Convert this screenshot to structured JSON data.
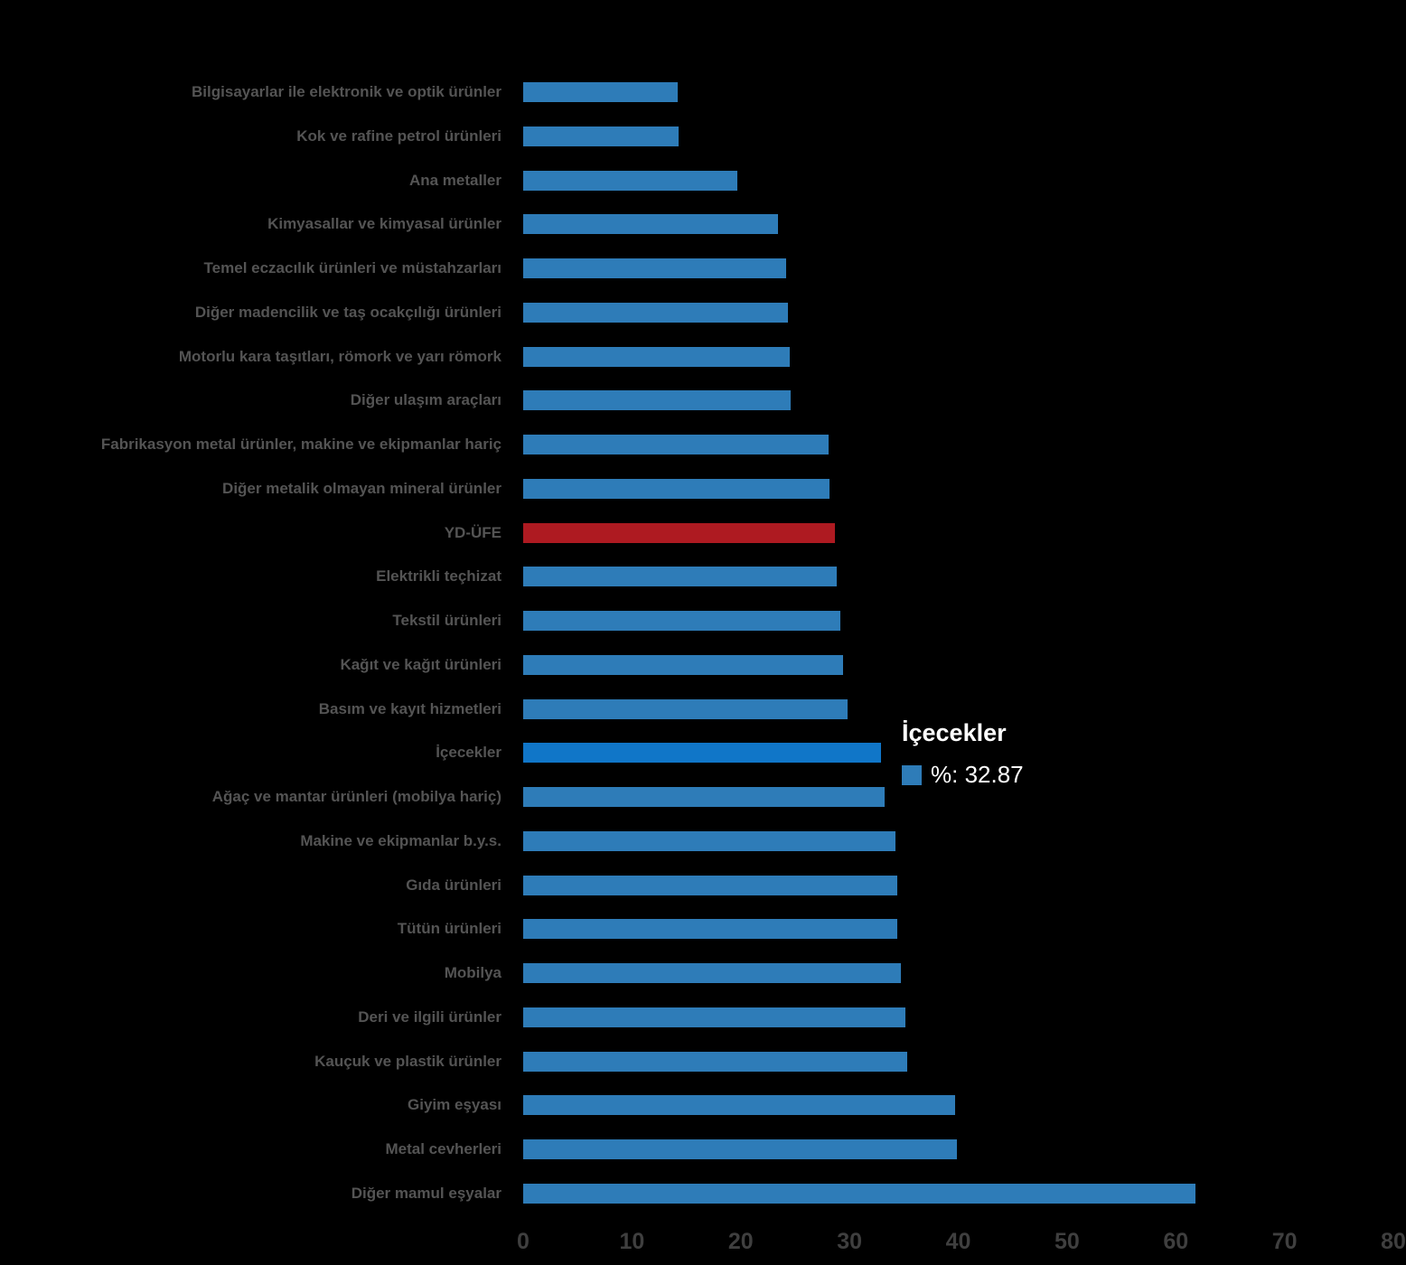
{
  "chart_data": {
    "type": "bar",
    "orientation": "horizontal",
    "title": "",
    "xlabel": "",
    "ylabel": "",
    "xlim": [
      0,
      80
    ],
    "x_ticks": [
      0,
      10,
      20,
      30,
      40,
      50,
      60,
      70,
      80
    ],
    "grid": false,
    "legend_position": "none",
    "categories": [
      "Bilgisayarlar ile elektronik ve optik ürünler",
      "Kok ve rafine petrol ürünleri",
      "Ana metaller",
      "Kimyasallar ve kimyasal ürünler",
      "Temel eczacılık ürünleri ve müstahzarları",
      "Diğer madencilik ve taş ocakçılığı ürünleri",
      "Motorlu kara taşıtları, römork ve yarı römork",
      "Diğer ulaşım araçları",
      "Fabrikasyon metal ürünler, makine ve ekipmanlar hariç",
      "Diğer metalik olmayan mineral ürünler",
      "YD-ÜFE",
      "Elektrikli teçhizat",
      "Tekstil ürünleri",
      "Kağıt ve kağıt ürünleri",
      "Basım ve kayıt hizmetleri",
      "İçecekler",
      "Ağaç ve mantar ürünleri (mobilya hariç)",
      "Makine ve ekipmanlar b.y.s.",
      "Gıda ürünleri",
      "Tütün ürünleri",
      "Mobilya",
      "Deri ve ilgili ürünler",
      "Kauçuk ve plastik ürünler",
      "Giyim eşyası",
      "Metal cevherleri",
      "Diğer mamul eşyalar"
    ],
    "values": [
      14.2,
      14.3,
      19.7,
      23.4,
      24.2,
      24.3,
      24.5,
      24.6,
      28.1,
      28.2,
      28.7,
      28.8,
      29.2,
      29.4,
      29.8,
      32.87,
      33.2,
      34.2,
      34.4,
      34.4,
      34.7,
      35.1,
      35.3,
      39.7,
      39.9,
      61.8
    ],
    "highlighted_category_index": 15,
    "reference_category_index": 10
  },
  "tooltip": {
    "title": "İçecekler",
    "value_label": "%: 32.87"
  },
  "colors": {
    "bar_default": "#2e7cb8",
    "bar_highlight": "#1076c8",
    "bar_reference": "#ae1a21",
    "label_text": "#545454",
    "tick_text": "#3f3f3f",
    "tooltip_text": "#ffffff",
    "tooltip_marker": "#2e7cb8",
    "background": "#000000"
  }
}
